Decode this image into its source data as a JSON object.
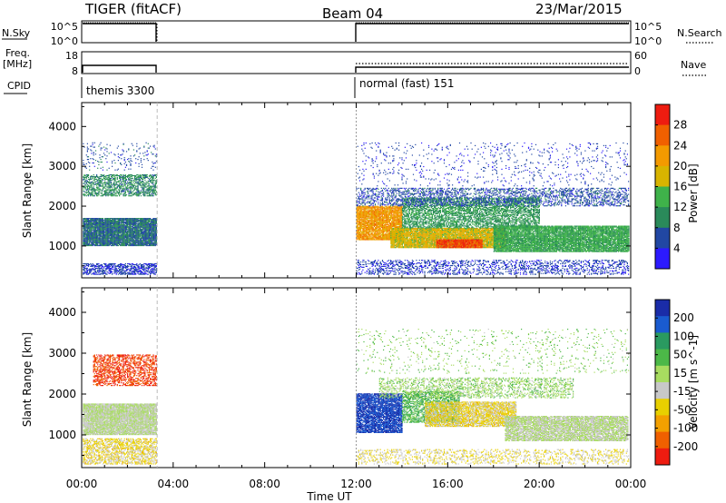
{
  "header": {
    "title": "TIGER (fitACF)",
    "beam": "Beam 04",
    "date": "23/Mar/2015"
  },
  "top_panels": {
    "nsky_label": "N.Sky",
    "nsky_ticks": [
      "10^5",
      "10^0"
    ],
    "nsearch_label": "N.Search",
    "nsearch_ticks": [
      "10^5",
      "10^0"
    ],
    "freq_label_1": "Freq.",
    "freq_label_2": "[MHz]",
    "freq_ticks": [
      "18",
      "8"
    ],
    "nave_label": "Nave",
    "nave_ticks": [
      "60",
      "0"
    ],
    "cpid_label": "CPID",
    "cpid_segments": [
      {
        "label": "themis 3300",
        "start_hour": 0,
        "end_hour": 3.3
      },
      {
        "label": "normal (fast) 151",
        "start_hour": 12,
        "end_hour": 24
      }
    ]
  },
  "x_axis": {
    "title": "Time UT",
    "ticks": [
      "00:00",
      "04:00",
      "08:00",
      "12:00",
      "16:00",
      "20:00",
      "00:00"
    ],
    "range_hours": [
      0,
      24
    ]
  },
  "chart_data": [
    {
      "type": "heatmap",
      "name": "power",
      "ylabel": "Slant Range [km]",
      "yticks": [
        1000,
        2000,
        3000,
        4000
      ],
      "ylim": [
        200,
        4600
      ],
      "colorbar_label": "Power [dB]",
      "colorbar_ticks": [
        "28",
        "24",
        "20",
        "16",
        "12",
        "8",
        "4"
      ],
      "colors": [
        "#2c1aff",
        "#2147a3",
        "#2a8a5a",
        "#3fb24a",
        "#d8b400",
        "#f39a00",
        "#f06000",
        "#ee1c10"
      ],
      "vmin": 0,
      "vmax": 32,
      "blobs": [
        {
          "t": [
            0.05,
            3.25
          ],
          "r": [
            1000,
            1700
          ],
          "v": 8,
          "density": 0.95
        },
        {
          "t": [
            0.05,
            3.25
          ],
          "r": [
            2250,
            2800
          ],
          "v": 10,
          "density": 0.55
        },
        {
          "t": [
            0.05,
            3.25
          ],
          "r": [
            280,
            560
          ],
          "v": 5,
          "density": 0.6
        },
        {
          "t": [
            0.05,
            3.25
          ],
          "r": [
            2900,
            3600
          ],
          "v": 6,
          "density": 0.08
        },
        {
          "t": [
            12.0,
            14.0
          ],
          "r": [
            1150,
            2000
          ],
          "v": 22,
          "density": 0.9
        },
        {
          "t": [
            13.5,
            18.5
          ],
          "r": [
            950,
            1450
          ],
          "v": 18,
          "density": 0.95
        },
        {
          "t": [
            15.5,
            17.5
          ],
          "r": [
            950,
            1150
          ],
          "v": 28,
          "density": 0.9
        },
        {
          "t": [
            14.0,
            20.0
          ],
          "r": [
            1450,
            2200
          ],
          "v": 11,
          "density": 0.6
        },
        {
          "t": [
            18.0,
            23.9
          ],
          "r": [
            850,
            1500
          ],
          "v": 13,
          "density": 0.9
        },
        {
          "t": [
            12.0,
            23.9
          ],
          "r": [
            2000,
            2450
          ],
          "v": 6,
          "density": 0.35
        },
        {
          "t": [
            12.0,
            23.9
          ],
          "r": [
            2500,
            3600
          ],
          "v": 5,
          "density": 0.05
        },
        {
          "t": [
            12.0,
            23.9
          ],
          "r": [
            280,
            650
          ],
          "v": 5,
          "density": 0.3
        }
      ]
    },
    {
      "type": "heatmap",
      "name": "velocity",
      "ylabel": "Slant Range [km]",
      "yticks": [
        1000,
        2000,
        3000,
        4000
      ],
      "ylim": [
        200,
        4600
      ],
      "colorbar_label": "Velocity [m s^-1]",
      "colorbar_ticks": [
        "200",
        "100",
        "50",
        "15",
        "-15",
        "-50",
        "-100",
        "-200"
      ],
      "colors": [
        "#ee1c10",
        "#f06000",
        "#f3a000",
        "#e8d000",
        "#c8c8c8",
        "#a8dc60",
        "#4cb848",
        "#2a9a60",
        "#1a5bd0",
        "#1a2ca8"
      ],
      "vmin": -250,
      "vmax": 250,
      "blobs": [
        {
          "t": [
            0.05,
            3.25
          ],
          "r": [
            1000,
            1750
          ],
          "v": 0,
          "density": 0.95
        },
        {
          "t": [
            0.5,
            3.25
          ],
          "r": [
            2200,
            2950
          ],
          "v": -200,
          "density": 0.5
        },
        {
          "t": [
            0.05,
            3.25
          ],
          "r": [
            280,
            900
          ],
          "v": -60,
          "density": 0.55
        },
        {
          "t": [
            12.0,
            14.0
          ],
          "r": [
            1050,
            2000
          ],
          "v": 200,
          "density": 0.85
        },
        {
          "t": [
            14.0,
            16.5
          ],
          "r": [
            1300,
            2050
          ],
          "v": 80,
          "density": 0.6
        },
        {
          "t": [
            15.0,
            19.0
          ],
          "r": [
            1200,
            1800
          ],
          "v": -60,
          "density": 0.8
        },
        {
          "t": [
            18.5,
            23.9
          ],
          "r": [
            850,
            1450
          ],
          "v": 0,
          "density": 0.85
        },
        {
          "t": [
            12.0,
            23.9
          ],
          "r": [
            280,
            650
          ],
          "v": -50,
          "density": 0.25
        },
        {
          "t": [
            13.0,
            21.5
          ],
          "r": [
            1900,
            2400
          ],
          "v": 30,
          "density": 0.35
        },
        {
          "t": [
            12.0,
            23.9
          ],
          "r": [
            2500,
            3600
          ],
          "v": 40,
          "density": 0.05
        }
      ]
    }
  ]
}
